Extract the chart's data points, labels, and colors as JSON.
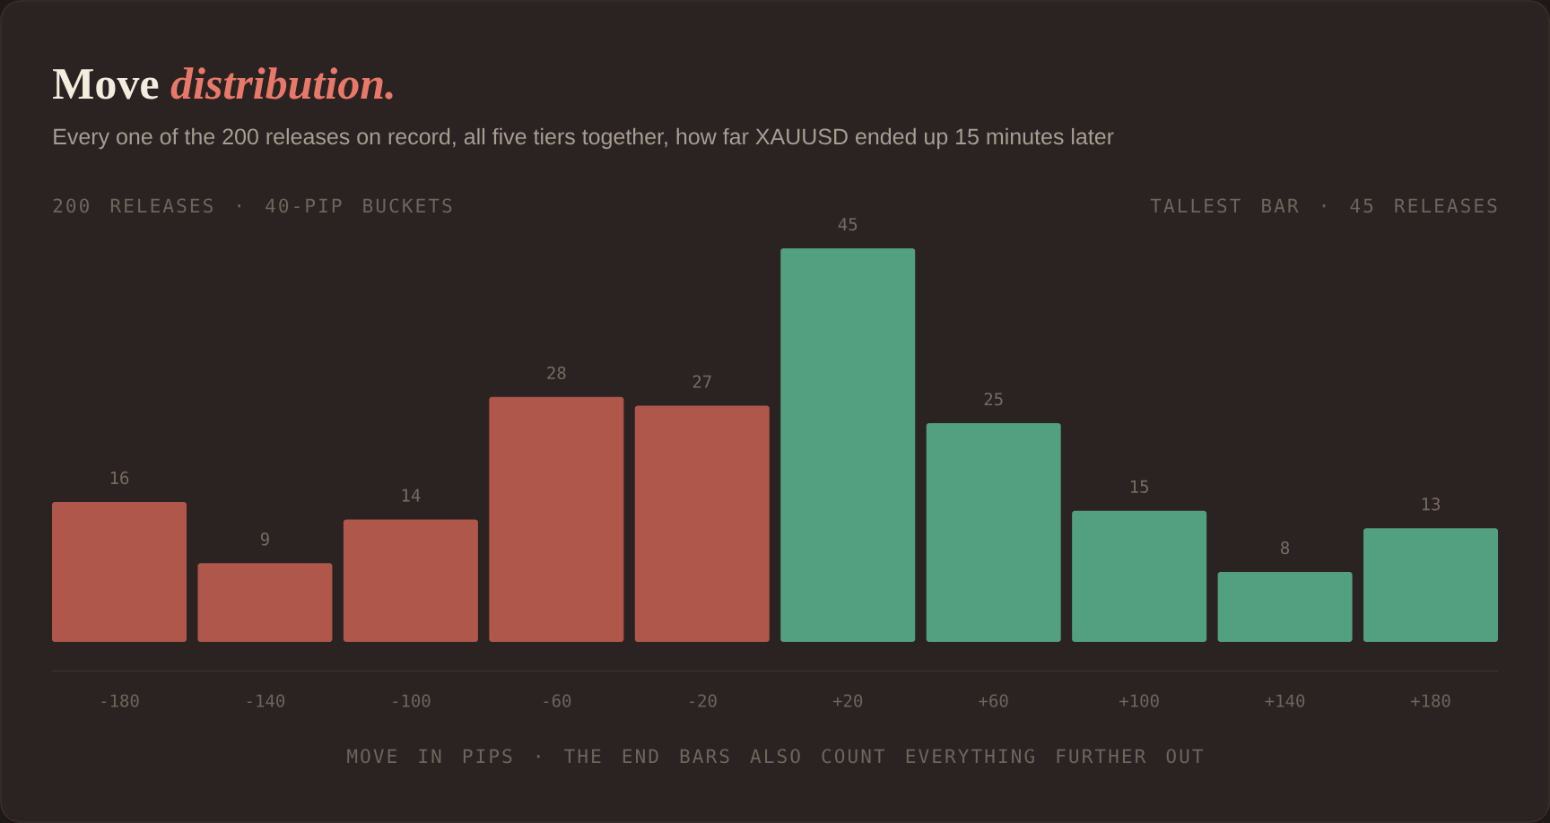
{
  "chart_data": {
    "type": "bar",
    "title": "Move *distribution.*",
    "subtitle": "Every one of the 200 releases on record, all five tiers together, how far XAUUSD ended up 15 minutes later",
    "annotations": [
      "200 RELEASES · 40-PIP BUCKETS",
      "TALLEST BAR · 45 RELEASES"
    ],
    "xlabel": "MOVE IN PIPS · THE END BARS ALSO COUNT EVERYTHING FURTHER OUT",
    "categories": [
      "-180",
      "-140",
      "-100",
      "-60",
      "-20",
      "+20",
      "+60",
      "+100",
      "+140",
      "+180"
    ],
    "values": [
      16,
      9,
      14,
      28,
      27,
      45,
      25,
      15,
      8,
      13
    ],
    "colors": [
      "#b0574c",
      "#b0574c",
      "#b0574c",
      "#b0574c",
      "#b0574c",
      "#52a07f",
      "#52a07f",
      "#52a07f",
      "#52a07f",
      "#52a07f"
    ],
    "data_labels": true
  }
}
